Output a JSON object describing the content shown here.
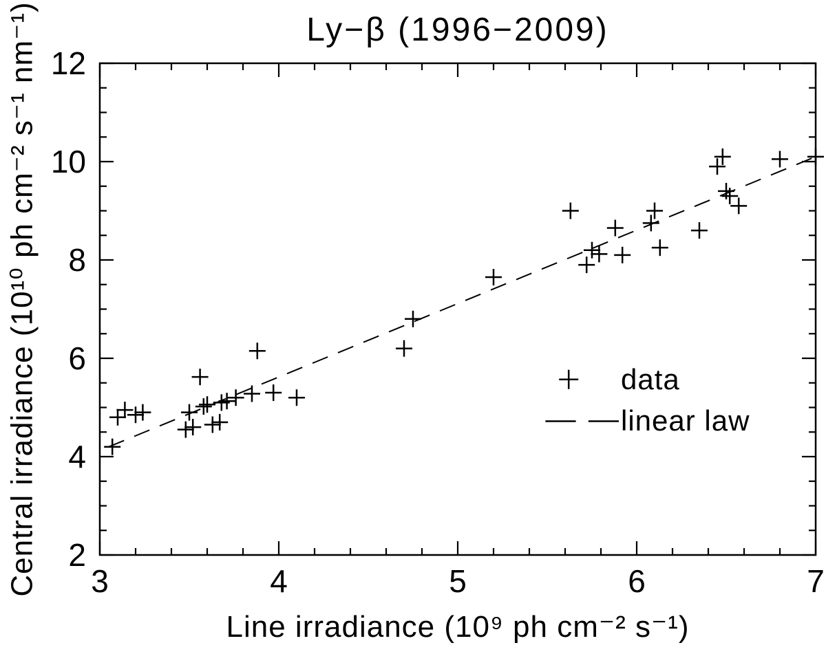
{
  "figure": {
    "background": "#ffffff",
    "ink": "#000000"
  },
  "chart_data": {
    "type": "scatter",
    "title": "Ly−β (1996−2009)",
    "xlabel": "Line irradiance (10⁹ ph cm⁻² s⁻¹)",
    "ylabel": "Central irradiance (10¹⁰ ph cm⁻² s⁻¹ nm⁻¹)",
    "axes": {
      "xlim": [
        3,
        7
      ],
      "ylim": [
        2,
        12
      ],
      "x_major_ticks": [
        3,
        4,
        5,
        6,
        7
      ],
      "y_major_ticks": [
        2,
        4,
        6,
        8,
        10,
        12
      ],
      "x_minor_step": 0.2,
      "y_minor_step": 0.5,
      "grid": false
    },
    "series": [
      {
        "name": "data",
        "marker": "plus",
        "points": [
          [
            3.07,
            4.2
          ],
          [
            3.1,
            4.8
          ],
          [
            3.14,
            4.95
          ],
          [
            3.2,
            4.85
          ],
          [
            3.24,
            4.9
          ],
          [
            3.48,
            4.55
          ],
          [
            3.52,
            4.6
          ],
          [
            3.5,
            4.9
          ],
          [
            3.56,
            5.62
          ],
          [
            3.58,
            5.02
          ],
          [
            3.6,
            5.06
          ],
          [
            3.63,
            4.65
          ],
          [
            3.67,
            4.7
          ],
          [
            3.68,
            5.1
          ],
          [
            3.71,
            5.13
          ],
          [
            3.76,
            5.2
          ],
          [
            3.85,
            5.28
          ],
          [
            3.88,
            6.15
          ],
          [
            3.97,
            5.3
          ],
          [
            4.1,
            5.2
          ],
          [
            4.7,
            6.2
          ],
          [
            4.75,
            6.8
          ],
          [
            5.2,
            7.65
          ],
          [
            5.63,
            9.0
          ],
          [
            5.72,
            7.9
          ],
          [
            5.75,
            8.2
          ],
          [
            5.79,
            8.12
          ],
          [
            5.88,
            8.65
          ],
          [
            5.92,
            8.1
          ],
          [
            6.08,
            8.75
          ],
          [
            6.1,
            9.0
          ],
          [
            6.13,
            8.25
          ],
          [
            6.35,
            8.6
          ],
          [
            6.45,
            9.9
          ],
          [
            6.48,
            10.1
          ],
          [
            6.5,
            9.4
          ],
          [
            6.52,
            9.3
          ],
          [
            6.57,
            9.1
          ],
          [
            6.8,
            10.05
          ],
          [
            7.0,
            10.1
          ]
        ]
      }
    ],
    "fit_line": {
      "name": "linear law",
      "style": "dashed",
      "x0": 3.05,
      "y0": 4.2,
      "x1": 7.0,
      "y1": 10.1
    },
    "legend": {
      "position": "inside-right",
      "entries": [
        {
          "marker": "plus",
          "label": "data"
        },
        {
          "marker": "dashes",
          "label": "linear law"
        }
      ]
    }
  }
}
